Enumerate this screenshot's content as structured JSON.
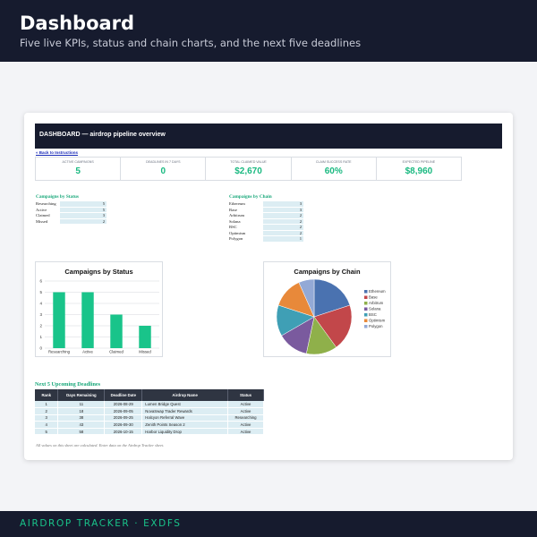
{
  "header": {
    "title": "Dashboard",
    "subtitle": "Five live KPIs, status and chain charts, and the next five deadlines"
  },
  "sheet": {
    "banner": "DASHBOARD — airdrop pipeline overview",
    "back_link": "« Back to Instructions",
    "kpis": [
      {
        "label": "ACTIVE CAMPAIGNS",
        "value": "5"
      },
      {
        "label": "DEADLINES IN 7 DAYS",
        "value": "0"
      },
      {
        "label": "TOTAL CLAIMED VALUE",
        "value": "$2,670"
      },
      {
        "label": "CLAIM SUCCESS RATE",
        "value": "60%"
      },
      {
        "label": "EXPECTED PIPELINE",
        "value": "$8,960"
      }
    ],
    "status_table": {
      "title": "Campaigns by Status",
      "rows": [
        {
          "label": "Researching",
          "count": "5"
        },
        {
          "label": "Active",
          "count": "5"
        },
        {
          "label": "Claimed",
          "count": "3"
        },
        {
          "label": "Missed",
          "count": "2"
        }
      ]
    },
    "chain_table": {
      "title": "Campaigns by Chain",
      "rows": [
        {
          "label": "Ethereum",
          "count": "3"
        },
        {
          "label": "Base",
          "count": "3"
        },
        {
          "label": "Arbitrum",
          "count": "2"
        },
        {
          "label": "Solana",
          "count": "2"
        },
        {
          "label": "BSC",
          "count": "2"
        },
        {
          "label": "Optimism",
          "count": "2"
        },
        {
          "label": "Polygon",
          "count": "1"
        }
      ]
    },
    "deadlines": {
      "title": "Next 5 Upcoming Deadlines",
      "columns": [
        "Rank",
        "Days Remaining",
        "Deadline Date",
        "Airdrop Name",
        "Status"
      ],
      "rows": [
        [
          "1",
          "11",
          "2026-08-29",
          "Lumen Bridge Quest",
          "Active"
        ],
        [
          "2",
          "18",
          "2026-09-05",
          "NovaSwap Trader Rewards",
          "Active"
        ],
        [
          "3",
          "38",
          "2026-09-25",
          "Halcyon Referral Wave",
          "Researching"
        ],
        [
          "4",
          "43",
          "2026-09-30",
          "Zenith Points Season 2",
          "Active"
        ],
        [
          "5",
          "58",
          "2026-10-15",
          "Harbor Liquidity Drop",
          "Active"
        ]
      ]
    },
    "note": "All values on this sheet are calculated. Enter data on the Airdrop Tracker sheet."
  },
  "footer": {
    "text": "AIRDROP TRACKER · EXDFS"
  },
  "colors": {
    "accent": "#19b980",
    "bar": "#19c48a",
    "ethereum": "#4a72b0",
    "base": "#c2474a",
    "arbitrum": "#8fb04a",
    "solana": "#7a5a9e",
    "bsc": "#3f9fb5",
    "optimism": "#e8893a",
    "polygon": "#93a9d6"
  },
  "chart_data": [
    {
      "type": "bar",
      "title": "Campaigns by Status",
      "categories": [
        "Researching",
        "Active",
        "Claimed",
        "Missed"
      ],
      "values": [
        5,
        5,
        3,
        2
      ],
      "ylim": [
        0,
        6
      ],
      "yticks": [
        "0",
        "1",
        "2",
        "3",
        "4",
        "5",
        "6"
      ],
      "grid": true
    },
    {
      "type": "pie",
      "title": "Campaigns by Chain",
      "labels": [
        "Ethereum",
        "Base",
        "Arbitrum",
        "Solana",
        "BSC",
        "Optimism",
        "Polygon"
      ],
      "values": [
        3,
        3,
        2,
        2,
        2,
        2,
        1
      ],
      "legend": "right"
    }
  ]
}
